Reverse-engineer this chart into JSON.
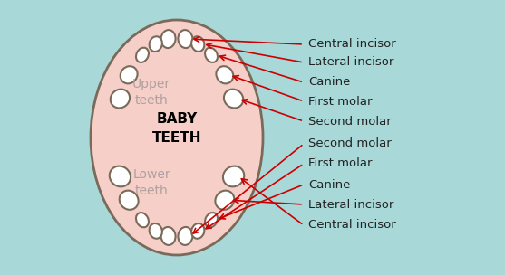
{
  "bg_color": "#a8d8d8",
  "oval_fill": "#f5cfc8",
  "oval_edge": "#7a6a5a",
  "tooth_fill": "#ffffff",
  "tooth_edge": "#7a6a5a",
  "label_color": "#222222",
  "arrow_color": "#cc0000",
  "upper_label_color": "#b0a0a0",
  "center_label": "BABY\nTEETH",
  "upper_text": "Upper\nteeth",
  "lower_text": "Lower\nteeth",
  "upper_labels": [
    "Central incisor",
    "Lateral incisor",
    "Canine",
    "First molar",
    "Second molar"
  ],
  "lower_labels": [
    "Second molar",
    "First molar",
    "Canine",
    "Lateral incisor",
    "Central incisor"
  ],
  "font_size_labels": 9.5,
  "font_size_center": 11,
  "font_size_side": 10
}
